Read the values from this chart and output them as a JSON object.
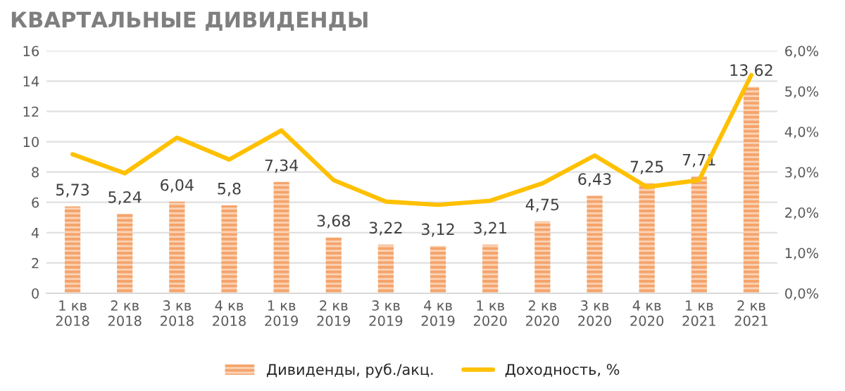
{
  "chart_data": {
    "type": "bar",
    "title": "КВАРТАЛЬНЫЕ ДИВИДЕНДЫ",
    "categories": [
      "1 кв\n2018",
      "2 кв\n2018",
      "3 кв\n2018",
      "4 кв\n2018",
      "1 кв\n2019",
      "2 кв\n2019",
      "3 кв\n2019",
      "4 кв\n2019",
      "1 кв\n2020",
      "2 кв\n2020",
      "3 кв\n2020",
      "4 кв\n2020",
      "1 кв\n2021",
      "2 кв\n2021"
    ],
    "series": [
      {
        "name": "Дивиденды, руб./акц.",
        "color": "#f4a46c",
        "values": [
          5.73,
          5.24,
          6.04,
          5.8,
          7.34,
          3.68,
          3.22,
          3.12,
          3.21,
          4.75,
          6.43,
          7.25,
          7.71,
          13.62
        ],
        "value_labels": [
          "5,73",
          "5,24",
          "6,04",
          "5,8",
          "7,34",
          "3,68",
          "3,22",
          "3,12",
          "3,21",
          "4,75",
          "6,43",
          "7,25",
          "7,71",
          "13,62"
        ]
      },
      {
        "name": "Доходность, %",
        "type": "line",
        "axis": "y2",
        "color": "#ffc000",
        "values": [
          3.44,
          2.97,
          3.85,
          3.31,
          4.03,
          2.8,
          2.27,
          2.19,
          2.29,
          2.72,
          3.41,
          2.63,
          2.8,
          5.4
        ]
      }
    ],
    "ylim": [
      0,
      16
    ],
    "yticks": [
      0,
      2,
      4,
      6,
      8,
      10,
      12,
      14,
      16
    ],
    "y2lim": [
      0,
      6
    ],
    "y2ticks": [
      {
        "value": 0,
        "label": "0,0%"
      },
      {
        "value": 1,
        "label": "1,0%"
      },
      {
        "value": 2,
        "label": "2,0%"
      },
      {
        "value": 3,
        "label": "3,0%"
      },
      {
        "value": 4,
        "label": "4,0%"
      },
      {
        "value": 5,
        "label": "5,0%"
      },
      {
        "value": 6,
        "label": "6,0%"
      }
    ],
    "grid": "y",
    "legend": "bottom",
    "marker": "none",
    "line_style": "solid"
  }
}
